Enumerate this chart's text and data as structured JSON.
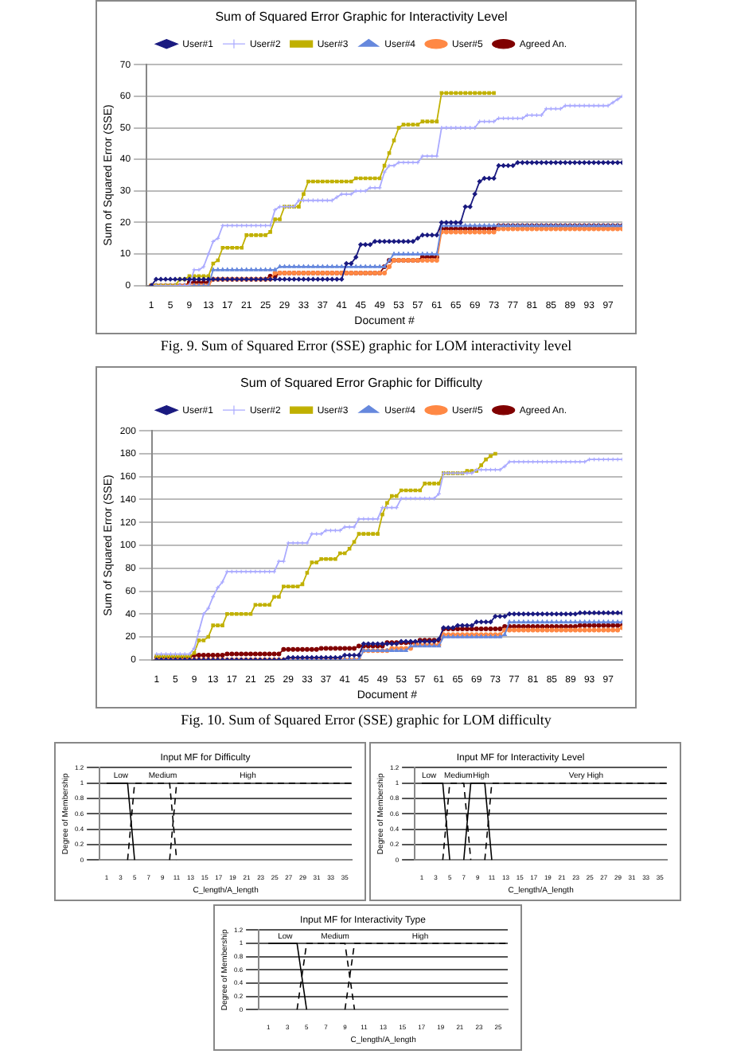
{
  "chart_data": [
    {
      "type": "line",
      "title": "Sum of Squared Error Graphic for Interactivity Level",
      "xlabel": "Document #",
      "ylabel": "Sum of Squared Error (SSE)",
      "xlim": [
        0,
        100
      ],
      "xticks": [
        1,
        5,
        9,
        13,
        17,
        21,
        25,
        29,
        33,
        37,
        41,
        45,
        49,
        53,
        57,
        61,
        65,
        69,
        73,
        77,
        81,
        85,
        89,
        93,
        97
      ],
      "ylim": [
        0,
        70
      ],
      "yticks": [
        0,
        10,
        20,
        30,
        40,
        50,
        60,
        70
      ],
      "grid": "y",
      "legend": "top",
      "x": [
        1,
        2,
        3,
        4,
        5,
        6,
        7,
        8,
        9,
        10,
        11,
        12,
        13,
        14,
        15,
        16,
        17,
        18,
        19,
        20,
        21,
        22,
        23,
        24,
        25,
        26,
        27,
        28,
        29,
        30,
        31,
        32,
        33,
        34,
        35,
        36,
        37,
        38,
        39,
        40,
        41,
        42,
        43,
        44,
        45,
        46,
        47,
        48,
        49,
        50,
        51,
        52,
        53,
        54,
        55,
        56,
        57,
        58,
        59,
        60,
        61,
        62,
        63,
        64,
        65,
        66,
        67,
        68,
        69,
        70,
        71,
        72,
        73,
        74,
        75,
        76,
        77,
        78,
        79,
        80,
        81,
        82,
        83,
        84,
        85,
        86,
        87,
        88,
        89,
        90,
        91,
        92,
        93,
        94,
        95,
        96,
        97,
        98,
        99,
        100
      ],
      "series": [
        {
          "name": "User#1",
          "color": "#1a1a80",
          "marker": "diamond",
          "values": [
            0,
            2,
            2,
            2,
            2,
            2,
            2,
            2,
            2,
            2,
            2,
            2,
            2,
            2,
            2,
            2,
            2,
            2,
            2,
            2,
            2,
            2,
            2,
            2,
            2,
            2,
            2,
            2,
            2,
            2,
            2,
            2,
            2,
            2,
            2,
            2,
            2,
            2,
            2,
            2,
            2,
            7,
            7,
            9,
            13,
            13,
            13,
            14,
            14,
            14,
            14,
            14,
            14,
            14,
            14,
            14,
            15,
            16,
            16,
            16,
            16,
            20,
            20,
            20,
            20,
            20,
            25,
            25,
            29,
            33,
            34,
            34,
            34,
            38,
            38,
            38,
            38,
            39,
            39,
            39,
            39,
            39,
            39,
            39,
            39,
            39,
            39,
            39,
            39,
            39,
            39,
            39,
            39,
            39,
            39,
            39,
            39,
            39,
            39,
            39
          ]
        },
        {
          "name": "User#2",
          "color": "#aaaaff",
          "marker": "cross",
          "values": [
            0,
            0,
            0,
            0,
            0,
            0,
            0,
            0,
            0,
            5,
            5,
            6,
            10,
            14,
            15,
            19,
            19,
            19,
            19,
            19,
            19,
            19,
            19,
            19,
            19,
            19,
            24,
            25,
            25,
            25,
            25,
            27,
            27,
            27,
            27,
            27,
            27,
            27,
            27,
            28,
            29,
            29,
            29,
            30,
            30,
            30,
            31,
            31,
            31,
            36,
            38,
            38,
            39,
            39,
            39,
            39,
            39,
            41,
            41,
            41,
            41,
            50,
            50,
            50,
            50,
            50,
            50,
            50,
            50,
            52,
            52,
            52,
            52,
            53,
            53,
            53,
            53,
            53,
            53,
            54,
            54,
            54,
            54,
            56,
            56,
            56,
            56,
            57,
            57,
            57,
            57,
            57,
            57,
            57,
            57,
            57,
            57,
            58,
            59,
            60
          ]
        },
        {
          "name": "User#3",
          "color": "#c0b000",
          "marker": "square",
          "values": [
            0,
            0,
            0,
            0,
            0,
            0,
            2,
            2,
            3,
            3,
            3,
            3,
            3,
            7,
            8,
            12,
            12,
            12,
            12,
            12,
            16,
            16,
            16,
            16,
            16,
            17,
            21,
            21,
            25,
            25,
            25,
            25,
            29,
            33,
            33,
            33,
            33,
            33,
            33,
            33,
            33,
            33,
            33,
            34,
            34,
            34,
            34,
            34,
            34,
            38,
            42,
            46,
            50,
            51,
            51,
            51,
            51,
            52,
            52,
            52,
            52,
            61,
            61,
            61,
            61,
            61,
            61,
            61,
            61,
            61,
            61,
            61,
            61,
            null,
            null,
            null,
            null,
            null,
            null,
            null,
            null,
            null,
            null,
            null,
            null,
            null,
            null,
            null,
            null,
            null,
            null,
            null,
            null,
            null,
            null,
            null,
            null,
            null,
            null,
            null
          ]
        },
        {
          "name": "User#4",
          "color": "#6688dd",
          "marker": "triangle",
          "values": [
            0,
            0,
            0,
            0,
            0,
            0,
            0,
            0,
            0,
            0,
            0,
            0,
            0,
            5,
            5,
            5,
            5,
            5,
            5,
            5,
            5,
            5,
            5,
            5,
            5,
            5,
            5,
            6,
            6,
            6,
            6,
            6,
            6,
            6,
            6,
            6,
            6,
            6,
            6,
            6,
            6,
            6,
            6,
            6,
            6,
            6,
            6,
            6,
            6,
            6,
            8,
            10,
            10,
            10,
            10,
            10,
            10,
            10,
            10,
            10,
            10,
            19,
            19,
            19,
            19,
            19,
            19,
            19,
            19,
            19,
            19,
            19,
            19,
            19,
            19,
            19,
            19,
            19,
            19,
            19,
            19,
            19,
            19,
            19,
            19,
            19,
            19,
            19,
            19,
            19,
            19,
            19,
            19,
            19,
            19,
            19,
            19,
            19,
            19,
            19
          ]
        },
        {
          "name": "User#5",
          "color": "#ff8844",
          "marker": "circle",
          "values": [
            0,
            0,
            0,
            0,
            0,
            0,
            0,
            0,
            0,
            0,
            0,
            0,
            0,
            2,
            2,
            2,
            2,
            2,
            2,
            2,
            2,
            2,
            2,
            2,
            2,
            2,
            4,
            4,
            4,
            4,
            4,
            4,
            4,
            4,
            4,
            4,
            4,
            4,
            4,
            4,
            4,
            4,
            4,
            4,
            4,
            4,
            4,
            4,
            4,
            4,
            6,
            8,
            8,
            8,
            8,
            8,
            8,
            8,
            8,
            8,
            8,
            17,
            17,
            17,
            17,
            17,
            17,
            17,
            17,
            17,
            17,
            17,
            17,
            18,
            18,
            18,
            18,
            18,
            18,
            18,
            18,
            18,
            18,
            18,
            18,
            18,
            18,
            18,
            18,
            18,
            18,
            18,
            18,
            18,
            18,
            18,
            18,
            18,
            18,
            18
          ]
        },
        {
          "name": "Agreed An.",
          "color": "#800000",
          "marker": "circle",
          "values": [
            0,
            0,
            0,
            0,
            0,
            0,
            0,
            0,
            1,
            1,
            1,
            1,
            1,
            2,
            2,
            2,
            2,
            2,
            2,
            2,
            2,
            2,
            2,
            2,
            2,
            3,
            3,
            4,
            4,
            4,
            4,
            4,
            4,
            4,
            4,
            4,
            4,
            4,
            4,
            4,
            4,
            4,
            4,
            4,
            4,
            4,
            4,
            4,
            4,
            6,
            8,
            8,
            8,
            8,
            8,
            8,
            8,
            9,
            9,
            9,
            9,
            18,
            18,
            18,
            18,
            18,
            18,
            18,
            18,
            18,
            18,
            18,
            18,
            19,
            19,
            19,
            19,
            19,
            19,
            19,
            19,
            19,
            19,
            19,
            19,
            19,
            19,
            19,
            19,
            19,
            19,
            19,
            19,
            19,
            19,
            19,
            19,
            19,
            19,
            19
          ]
        }
      ],
      "annotations": [
        "Fig. 9. Sum of Squared Error (SSE) graphic for LOM interactivity level"
      ]
    },
    {
      "type": "line",
      "title": "Sum of Squared Error Graphic for Difficulty",
      "xlabel": "Document #",
      "ylabel": "Sum of Squared Error (SSE)",
      "xlim": [
        0,
        100
      ],
      "xticks": [
        1,
        5,
        9,
        13,
        17,
        21,
        25,
        29,
        33,
        37,
        41,
        45,
        49,
        53,
        57,
        61,
        65,
        69,
        73,
        77,
        81,
        85,
        89,
        93,
        97
      ],
      "ylim": [
        0,
        200
      ],
      "yticks": [
        0,
        20,
        40,
        60,
        80,
        100,
        120,
        140,
        160,
        180,
        200
      ],
      "grid": "y",
      "legend": "top",
      "x": [
        1,
        2,
        3,
        4,
        5,
        6,
        7,
        8,
        9,
        10,
        11,
        12,
        13,
        14,
        15,
        16,
        17,
        18,
        19,
        20,
        21,
        22,
        23,
        24,
        25,
        26,
        27,
        28,
        29,
        30,
        31,
        32,
        33,
        34,
        35,
        36,
        37,
        38,
        39,
        40,
        41,
        42,
        43,
        44,
        45,
        46,
        47,
        48,
        49,
        50,
        51,
        52,
        53,
        54,
        55,
        56,
        57,
        58,
        59,
        60,
        61,
        62,
        63,
        64,
        65,
        66,
        67,
        68,
        69,
        70,
        71,
        72,
        73,
        74,
        75,
        76,
        77,
        78,
        79,
        80,
        81,
        82,
        83,
        84,
        85,
        86,
        87,
        88,
        89,
        90,
        91,
        92,
        93,
        94,
        95,
        96,
        97,
        98,
        99,
        100
      ],
      "series": [
        {
          "name": "User#1",
          "color": "#1a1a80",
          "marker": "diamond",
          "values": [
            0,
            0,
            0,
            0,
            0,
            0,
            0,
            0,
            0,
            0,
            0,
            0,
            0,
            0,
            0,
            0,
            0,
            0,
            0,
            0,
            0,
            0,
            0,
            0,
            0,
            0,
            0,
            0,
            2,
            2,
            2,
            2,
            2,
            2,
            2,
            2,
            2,
            2,
            2,
            2,
            4,
            4,
            4,
            4,
            14,
            14,
            14,
            14,
            14,
            14,
            14,
            14,
            16,
            16,
            16,
            16,
            16,
            16,
            16,
            16,
            18,
            28,
            28,
            28,
            30,
            30,
            30,
            30,
            33,
            33,
            33,
            33,
            38,
            38,
            38,
            40,
            40,
            40,
            40,
            40,
            40,
            40,
            40,
            40,
            40,
            40,
            40,
            40,
            40,
            40,
            41,
            41,
            41,
            41,
            41,
            41,
            41,
            41,
            41,
            41
          ]
        },
        {
          "name": "User#2",
          "color": "#aaaaff",
          "marker": "cross",
          "values": [
            5,
            5,
            5,
            5,
            5,
            5,
            5,
            5,
            10,
            25,
            40,
            45,
            55,
            63,
            68,
            77,
            77,
            77,
            77,
            77,
            77,
            77,
            77,
            77,
            77,
            77,
            86,
            86,
            102,
            102,
            102,
            102,
            102,
            110,
            110,
            110,
            113,
            113,
            113,
            113,
            116,
            116,
            116,
            123,
            123,
            123,
            123,
            123,
            133,
            133,
            133,
            133,
            141,
            141,
            141,
            141,
            141,
            141,
            141,
            141,
            145,
            163,
            163,
            163,
            163,
            163,
            163,
            163,
            166,
            166,
            166,
            166,
            166,
            166,
            169,
            173,
            173,
            173,
            173,
            173,
            173,
            173,
            173,
            173,
            173,
            173,
            173,
            173,
            173,
            173,
            173,
            173,
            175,
            175,
            175,
            175,
            175,
            175,
            175,
            175
          ]
        },
        {
          "name": "User#3",
          "color": "#c0b000",
          "marker": "square",
          "values": [
            3,
            3,
            3,
            3,
            3,
            3,
            3,
            3,
            6,
            17,
            17,
            20,
            30,
            30,
            30,
            40,
            40,
            40,
            40,
            40,
            40,
            48,
            48,
            48,
            48,
            55,
            55,
            64,
            64,
            64,
            64,
            66,
            76,
            85,
            85,
            88,
            88,
            88,
            88,
            93,
            93,
            97,
            103,
            110,
            110,
            110,
            110,
            110,
            127,
            137,
            143,
            143,
            148,
            148,
            148,
            148,
            148,
            154,
            154,
            154,
            154,
            163,
            163,
            163,
            163,
            163,
            165,
            165,
            165,
            170,
            175,
            178,
            180,
            null,
            null,
            null,
            null,
            null,
            null,
            null,
            null,
            null,
            null,
            null,
            null,
            null,
            null,
            null,
            null,
            null,
            null,
            null,
            null,
            null,
            null,
            null,
            null,
            null,
            null,
            null
          ]
        },
        {
          "name": "User#4",
          "color": "#6688dd",
          "marker": "triangle",
          "values": [
            null,
            null,
            null,
            null,
            null,
            null,
            null,
            null,
            null,
            null,
            null,
            null,
            null,
            null,
            null,
            null,
            null,
            null,
            null,
            null,
            null,
            null,
            null,
            null,
            null,
            null,
            0,
            0,
            0,
            0,
            0,
            0,
            0,
            0,
            0,
            0,
            0,
            0,
            0,
            0,
            0,
            0,
            0,
            0,
            8,
            8,
            8,
            8,
            8,
            8,
            8,
            8,
            8,
            8,
            12,
            12,
            12,
            12,
            12,
            12,
            12,
            20,
            20,
            20,
            20,
            20,
            20,
            20,
            20,
            20,
            20,
            20,
            20,
            20,
            22,
            33,
            33,
            33,
            33,
            33,
            33,
            33,
            33,
            33,
            33,
            33,
            33,
            33,
            33,
            33,
            33,
            33,
            33,
            33,
            33,
            33,
            33,
            33,
            33,
            33
          ]
        },
        {
          "name": "User#5",
          "color": "#ff8844",
          "marker": "circle",
          "values": [
            0,
            0,
            0,
            0,
            0,
            0,
            0,
            0,
            0,
            0,
            0,
            0,
            0,
            0,
            0,
            0,
            0,
            0,
            0,
            0,
            0,
            0,
            0,
            0,
            0,
            0,
            0,
            0,
            0,
            0,
            0,
            0,
            0,
            0,
            0,
            0,
            0,
            0,
            0,
            0,
            0,
            0,
            0,
            0,
            8,
            8,
            8,
            8,
            8,
            8,
            10,
            10,
            10,
            10,
            10,
            13,
            13,
            13,
            13,
            13,
            13,
            22,
            22,
            22,
            22,
            22,
            22,
            22,
            22,
            22,
            22,
            22,
            22,
            22,
            26,
            26,
            26,
            26,
            26,
            26,
            26,
            26,
            26,
            26,
            26,
            26,
            26,
            26,
            26,
            26,
            26,
            26,
            26,
            26,
            26,
            26,
            26,
            26,
            26,
            28
          ]
        },
        {
          "name": "Agreed An.",
          "color": "#800000",
          "marker": "circle",
          "values": [
            2,
            2,
            2,
            2,
            2,
            2,
            2,
            2,
            4,
            4,
            4,
            4,
            4,
            4,
            4,
            5,
            5,
            5,
            5,
            5,
            5,
            5,
            5,
            5,
            5,
            5,
            5,
            9,
            9,
            9,
            9,
            9,
            9,
            9,
            9,
            10,
            10,
            10,
            10,
            10,
            10,
            10,
            10,
            12,
            12,
            12,
            12,
            12,
            12,
            15,
            15,
            15,
            15,
            15,
            15,
            15,
            17,
            17,
            17,
            17,
            17,
            27,
            27,
            27,
            27,
            27,
            27,
            27,
            27,
            27,
            27,
            27,
            27,
            27,
            29,
            29,
            29,
            29,
            29,
            29,
            29,
            29,
            29,
            29,
            29,
            29,
            29,
            29,
            29,
            29,
            30,
            30,
            30,
            30,
            30,
            30,
            30,
            30,
            30,
            30
          ]
        }
      ],
      "annotations": [
        "Fig. 10. Sum of Squared Error (SSE) graphic for LOM difficulty"
      ]
    },
    {
      "type": "line",
      "title": "Input MF for Difficulty",
      "xlabel": "C_length/A_length",
      "ylabel": "Degree of Membership",
      "xlim": [
        0,
        36
      ],
      "xticks": [
        1,
        3,
        5,
        7,
        9,
        11,
        13,
        15,
        17,
        19,
        21,
        23,
        25,
        27,
        29,
        31,
        33,
        35
      ],
      "ylim": [
        0,
        1.2
      ],
      "yticks": [
        0,
        0.2,
        0.4,
        0.6,
        0.8,
        1,
        1.2
      ],
      "grid": "y",
      "legend": false,
      "marker": "none",
      "series": [
        {
          "color": "#000000",
          "line_style": "solid",
          "x": [
            1,
            4,
            5
          ],
          "values": [
            1,
            1,
            0
          ]
        },
        {
          "color": "#000000",
          "line_style": "dashed",
          "x": [
            4,
            5,
            10,
            11
          ],
          "values": [
            0,
            1,
            1,
            0
          ]
        },
        {
          "color": "#000000",
          "line_style": "dashed",
          "x": [
            10,
            11,
            36
          ],
          "values": [
            0,
            1,
            1
          ]
        }
      ],
      "annotations": [
        {
          "text": "Low",
          "x": 2,
          "y": 1.1
        },
        {
          "text": "Medium",
          "x": 7,
          "y": 1.1
        },
        {
          "text": "High",
          "x": 20,
          "y": 1.1
        }
      ]
    },
    {
      "type": "line",
      "title": "Input MF for Interactivity Level",
      "xlabel": "C_length/A_length",
      "ylabel": "Degree of Membership",
      "xlim": [
        0,
        36
      ],
      "xticks": [
        1,
        3,
        5,
        7,
        9,
        11,
        13,
        15,
        17,
        19,
        21,
        23,
        25,
        27,
        29,
        31,
        33,
        35
      ],
      "ylim": [
        0,
        1.2
      ],
      "yticks": [
        0,
        0.2,
        0.4,
        0.6,
        0.8,
        1,
        1.2
      ],
      "grid": "y",
      "legend": false,
      "marker": "none",
      "series": [
        {
          "color": "#000000",
          "line_style": "solid",
          "x": [
            1,
            4,
            5
          ],
          "values": [
            1,
            1,
            0
          ]
        },
        {
          "color": "#000000",
          "line_style": "dashed",
          "x": [
            4,
            5,
            7,
            8
          ],
          "values": [
            0,
            1,
            1,
            0
          ]
        },
        {
          "color": "#000000",
          "line_style": "solid",
          "x": [
            7,
            8,
            10,
            11
          ],
          "values": [
            0,
            1,
            1,
            0
          ]
        },
        {
          "color": "#000000",
          "line_style": "dashed",
          "x": [
            10,
            11,
            36
          ],
          "values": [
            0,
            1,
            1
          ]
        }
      ],
      "annotations": [
        {
          "text": "Low",
          "x": 1,
          "y": 1.1
        },
        {
          "text": "Medium",
          "x": 4.2,
          "y": 1.1
        },
        {
          "text": "High",
          "x": 8.3,
          "y": 1.1
        },
        {
          "text": "Very High",
          "x": 22,
          "y": 1.1
        }
      ]
    },
    {
      "type": "line",
      "title": "Input MF for Interactivity Type",
      "xlabel": "C_length/A_length",
      "ylabel": "Degree of Membership",
      "xlim": [
        0,
        26
      ],
      "xticks": [
        1,
        3,
        5,
        7,
        9,
        11,
        13,
        15,
        17,
        19,
        21,
        23,
        25
      ],
      "ylim": [
        0,
        1.2
      ],
      "yticks": [
        0,
        0.2,
        0.4,
        0.6,
        0.8,
        1,
        1.2
      ],
      "grid": "y",
      "legend": false,
      "marker": "none",
      "series": [
        {
          "color": "#000000",
          "line_style": "solid",
          "x": [
            1,
            4,
            5
          ],
          "values": [
            1,
            1,
            0
          ]
        },
        {
          "color": "#000000",
          "line_style": "dashed",
          "x": [
            4,
            5,
            9,
            10
          ],
          "values": [
            0,
            1,
            1,
            0
          ]
        },
        {
          "color": "#000000",
          "line_style": "dashed",
          "x": [
            9,
            10,
            26
          ],
          "values": [
            0,
            1,
            1
          ]
        }
      ],
      "annotations": [
        {
          "text": "Low",
          "x": 2,
          "y": 1.1
        },
        {
          "text": "Medium",
          "x": 6.5,
          "y": 1.1
        },
        {
          "text": "High",
          "x": 16,
          "y": 1.1
        }
      ]
    }
  ]
}
